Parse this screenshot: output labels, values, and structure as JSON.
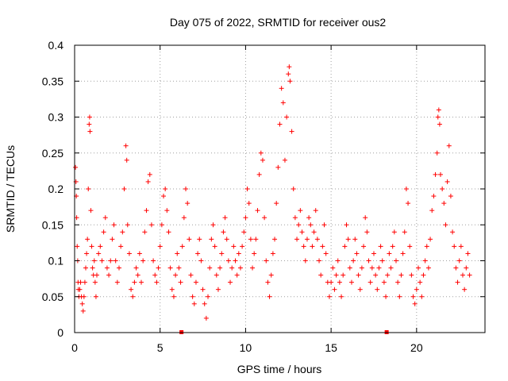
{
  "chart_data": {
    "type": "scatter",
    "title": "Day 075 of 2022, SRMTID for receiver ous2",
    "xlabel": "GPS time / hours",
    "ylabel": "SRMTID / TECUs",
    "xlim": [
      0,
      24
    ],
    "ylim": [
      0,
      0.4
    ],
    "x_ticks": [
      0,
      5,
      10,
      15,
      20
    ],
    "y_ticks": [
      0,
      0.05,
      0.1,
      0.15,
      0.2,
      0.25,
      0.3,
      0.35,
      0.4
    ],
    "x_tick_labels": [
      "0",
      "5",
      "10",
      "15",
      "20"
    ],
    "y_tick_labels": [
      "0",
      "0.05",
      "0.1",
      "0.15",
      "0.2",
      "0.25",
      "0.3",
      "0.35",
      "0.4"
    ],
    "grid": true,
    "marker": "plus",
    "color": "#ff0000",
    "series": [
      {
        "name": "SRMTID",
        "points": [
          [
            0.05,
            0.23
          ],
          [
            0.08,
            0.21
          ],
          [
            0.1,
            0.19
          ],
          [
            0.12,
            0.16
          ],
          [
            0.15,
            0.12
          ],
          [
            0.18,
            0.1
          ],
          [
            0.2,
            0.07
          ],
          [
            0.22,
            0.06
          ],
          [
            0.25,
            0.05
          ],
          [
            0.3,
            0.06
          ],
          [
            0.35,
            0.07
          ],
          [
            0.4,
            0.05
          ],
          [
            0.45,
            0.04
          ],
          [
            0.5,
            0.03
          ],
          [
            0.55,
            0.05
          ],
          [
            0.6,
            0.07
          ],
          [
            0.65,
            0.09
          ],
          [
            0.7,
            0.11
          ],
          [
            0.75,
            0.13
          ],
          [
            0.8,
            0.2
          ],
          [
            0.85,
            0.29
          ],
          [
            0.88,
            0.3
          ],
          [
            0.9,
            0.28
          ],
          [
            0.95,
            0.17
          ],
          [
            1.0,
            0.12
          ],
          [
            1.05,
            0.09
          ],
          [
            1.1,
            0.08
          ],
          [
            1.15,
            0.1
          ],
          [
            1.2,
            0.07
          ],
          [
            1.25,
            0.05
          ],
          [
            1.3,
            0.08
          ],
          [
            1.4,
            0.11
          ],
          [
            1.5,
            0.12
          ],
          [
            1.6,
            0.1
          ],
          [
            1.7,
            0.14
          ],
          [
            1.8,
            0.16
          ],
          [
            1.9,
            0.09
          ],
          [
            2.0,
            0.08
          ],
          [
            2.1,
            0.1
          ],
          [
            2.2,
            0.13
          ],
          [
            2.3,
            0.15
          ],
          [
            2.4,
            0.1
          ],
          [
            2.5,
            0.07
          ],
          [
            2.6,
            0.09
          ],
          [
            2.7,
            0.12
          ],
          [
            2.8,
            0.14
          ],
          [
            2.9,
            0.2
          ],
          [
            3.0,
            0.26
          ],
          [
            3.05,
            0.24
          ],
          [
            3.1,
            0.15
          ],
          [
            3.2,
            0.11
          ],
          [
            3.3,
            0.06
          ],
          [
            3.4,
            0.05
          ],
          [
            3.5,
            0.07
          ],
          [
            3.6,
            0.09
          ],
          [
            3.7,
            0.08
          ],
          [
            3.8,
            0.11
          ],
          [
            3.9,
            0.07
          ],
          [
            4.0,
            0.1
          ],
          [
            4.1,
            0.14
          ],
          [
            4.2,
            0.17
          ],
          [
            4.3,
            0.21
          ],
          [
            4.4,
            0.22
          ],
          [
            4.5,
            0.15
          ],
          [
            4.6,
            0.1
          ],
          [
            4.7,
            0.08
          ],
          [
            4.8,
            0.07
          ],
          [
            4.9,
            0.09
          ],
          [
            5.0,
            0.12
          ],
          [
            5.1,
            0.15
          ],
          [
            5.2,
            0.19
          ],
          [
            5.3,
            0.2
          ],
          [
            5.4,
            0.17
          ],
          [
            5.5,
            0.14
          ],
          [
            5.6,
            0.09
          ],
          [
            5.7,
            0.06
          ],
          [
            5.8,
            0.05
          ],
          [
            5.9,
            0.08
          ],
          [
            6.0,
            0.11
          ],
          [
            6.1,
            0.09
          ],
          [
            6.2,
            0.07
          ],
          [
            6.3,
            0.12
          ],
          [
            6.4,
            0.16
          ],
          [
            6.5,
            0.2
          ],
          [
            6.6,
            0.18
          ],
          [
            6.7,
            0.13
          ],
          [
            6.8,
            0.08
          ],
          [
            6.9,
            0.05
          ],
          [
            7.0,
            0.04
          ],
          [
            7.1,
            0.07
          ],
          [
            7.2,
            0.11
          ],
          [
            7.3,
            0.13
          ],
          [
            7.4,
            0.1
          ],
          [
            7.5,
            0.06
          ],
          [
            7.6,
            0.04
          ],
          [
            7.7,
            0.02
          ],
          [
            7.8,
            0.05
          ],
          [
            7.9,
            0.09
          ],
          [
            8.0,
            0.13
          ],
          [
            8.1,
            0.15
          ],
          [
            8.2,
            0.12
          ],
          [
            8.3,
            0.08
          ],
          [
            8.4,
            0.06
          ],
          [
            8.5,
            0.09
          ],
          [
            8.6,
            0.11
          ],
          [
            8.7,
            0.14
          ],
          [
            8.8,
            0.16
          ],
          [
            8.9,
            0.13
          ],
          [
            9.0,
            0.1
          ],
          [
            9.1,
            0.07
          ],
          [
            9.2,
            0.09
          ],
          [
            9.3,
            0.12
          ],
          [
            9.4,
            0.1
          ],
          [
            9.5,
            0.08
          ],
          [
            9.6,
            0.11
          ],
          [
            9.7,
            0.09
          ],
          [
            9.8,
            0.12
          ],
          [
            9.9,
            0.14
          ],
          [
            10.0,
            0.16
          ],
          [
            10.1,
            0.2
          ],
          [
            10.2,
            0.18
          ],
          [
            10.3,
            0.13
          ],
          [
            10.4,
            0.09
          ],
          [
            10.5,
            0.11
          ],
          [
            10.6,
            0.13
          ],
          [
            10.7,
            0.17
          ],
          [
            10.8,
            0.22
          ],
          [
            10.9,
            0.25
          ],
          [
            11.0,
            0.24
          ],
          [
            11.1,
            0.16
          ],
          [
            11.2,
            0.1
          ],
          [
            11.3,
            0.07
          ],
          [
            11.4,
            0.05
          ],
          [
            11.5,
            0.08
          ],
          [
            11.6,
            0.11
          ],
          [
            11.7,
            0.13
          ],
          [
            11.8,
            0.18
          ],
          [
            11.9,
            0.23
          ],
          [
            12.0,
            0.29
          ],
          [
            12.1,
            0.34
          ],
          [
            12.2,
            0.32
          ],
          [
            12.3,
            0.24
          ],
          [
            12.4,
            0.3
          ],
          [
            12.5,
            0.36
          ],
          [
            12.55,
            0.37
          ],
          [
            12.6,
            0.35
          ],
          [
            12.7,
            0.28
          ],
          [
            12.8,
            0.2
          ],
          [
            12.9,
            0.16
          ],
          [
            13.0,
            0.13
          ],
          [
            13.1,
            0.15
          ],
          [
            13.2,
            0.17
          ],
          [
            13.3,
            0.14
          ],
          [
            13.4,
            0.12
          ],
          [
            13.5,
            0.1
          ],
          [
            13.6,
            0.13
          ],
          [
            13.7,
            0.16
          ],
          [
            13.8,
            0.15
          ],
          [
            13.9,
            0.12
          ],
          [
            14.0,
            0.14
          ],
          [
            14.1,
            0.17
          ],
          [
            14.2,
            0.13
          ],
          [
            14.3,
            0.1
          ],
          [
            14.4,
            0.08
          ],
          [
            14.5,
            0.12
          ],
          [
            14.6,
            0.15
          ],
          [
            14.7,
            0.11
          ],
          [
            14.8,
            0.07
          ],
          [
            14.9,
            0.05
          ],
          [
            15.0,
            0.07
          ],
          [
            15.1,
            0.09
          ],
          [
            15.2,
            0.06
          ],
          [
            15.3,
            0.08
          ],
          [
            15.4,
            0.1
          ],
          [
            15.5,
            0.07
          ],
          [
            15.6,
            0.05
          ],
          [
            15.7,
            0.08
          ],
          [
            15.8,
            0.12
          ],
          [
            15.9,
            0.15
          ],
          [
            16.0,
            0.13
          ],
          [
            16.1,
            0.09
          ],
          [
            16.2,
            0.07
          ],
          [
            16.3,
            0.1
          ],
          [
            16.4,
            0.13
          ],
          [
            16.5,
            0.11
          ],
          [
            16.6,
            0.08
          ],
          [
            16.7,
            0.06
          ],
          [
            16.8,
            0.09
          ],
          [
            16.9,
            0.12
          ],
          [
            17.0,
            0.16
          ],
          [
            17.1,
            0.14
          ],
          [
            17.2,
            0.1
          ],
          [
            17.3,
            0.07
          ],
          [
            17.4,
            0.09
          ],
          [
            17.5,
            0.11
          ],
          [
            17.6,
            0.08
          ],
          [
            17.7,
            0.06
          ],
          [
            17.8,
            0.09
          ],
          [
            17.9,
            0.12
          ],
          [
            18.0,
            0.1
          ],
          [
            18.1,
            0.07
          ],
          [
            18.2,
            0.05
          ],
          [
            18.3,
            0.08
          ],
          [
            18.4,
            0.11
          ],
          [
            18.5,
            0.09
          ],
          [
            18.6,
            0.12
          ],
          [
            18.7,
            0.14
          ],
          [
            18.8,
            0.1
          ],
          [
            18.9,
            0.07
          ],
          [
            19.0,
            0.05
          ],
          [
            19.1,
            0.08
          ],
          [
            19.2,
            0.11
          ],
          [
            19.3,
            0.14
          ],
          [
            19.4,
            0.2
          ],
          [
            19.5,
            0.18
          ],
          [
            19.6,
            0.12
          ],
          [
            19.7,
            0.08
          ],
          [
            19.8,
            0.05
          ],
          [
            19.9,
            0.04
          ],
          [
            20.0,
            0.06
          ],
          [
            20.1,
            0.09
          ],
          [
            20.2,
            0.07
          ],
          [
            20.3,
            0.05
          ],
          [
            20.4,
            0.08
          ],
          [
            20.5,
            0.1
          ],
          [
            20.6,
            0.12
          ],
          [
            20.7,
            0.09
          ],
          [
            20.8,
            0.13
          ],
          [
            20.9,
            0.17
          ],
          [
            21.0,
            0.19
          ],
          [
            21.1,
            0.22
          ],
          [
            21.2,
            0.25
          ],
          [
            21.25,
            0.3
          ],
          [
            21.3,
            0.31
          ],
          [
            21.35,
            0.29
          ],
          [
            21.4,
            0.22
          ],
          [
            21.5,
            0.2
          ],
          [
            21.6,
            0.18
          ],
          [
            21.7,
            0.15
          ],
          [
            21.8,
            0.21
          ],
          [
            21.9,
            0.26
          ],
          [
            22.0,
            0.19
          ],
          [
            22.1,
            0.14
          ],
          [
            22.2,
            0.12
          ],
          [
            22.3,
            0.09
          ],
          [
            22.4,
            0.07
          ],
          [
            22.5,
            0.1
          ],
          [
            22.6,
            0.12
          ],
          [
            22.7,
            0.08
          ],
          [
            22.8,
            0.06
          ],
          [
            22.9,
            0.09
          ],
          [
            23.0,
            0.11
          ],
          [
            23.1,
            0.08
          ]
        ]
      }
    ],
    "x_axis_markers": [
      6.25,
      18.25
    ]
  }
}
